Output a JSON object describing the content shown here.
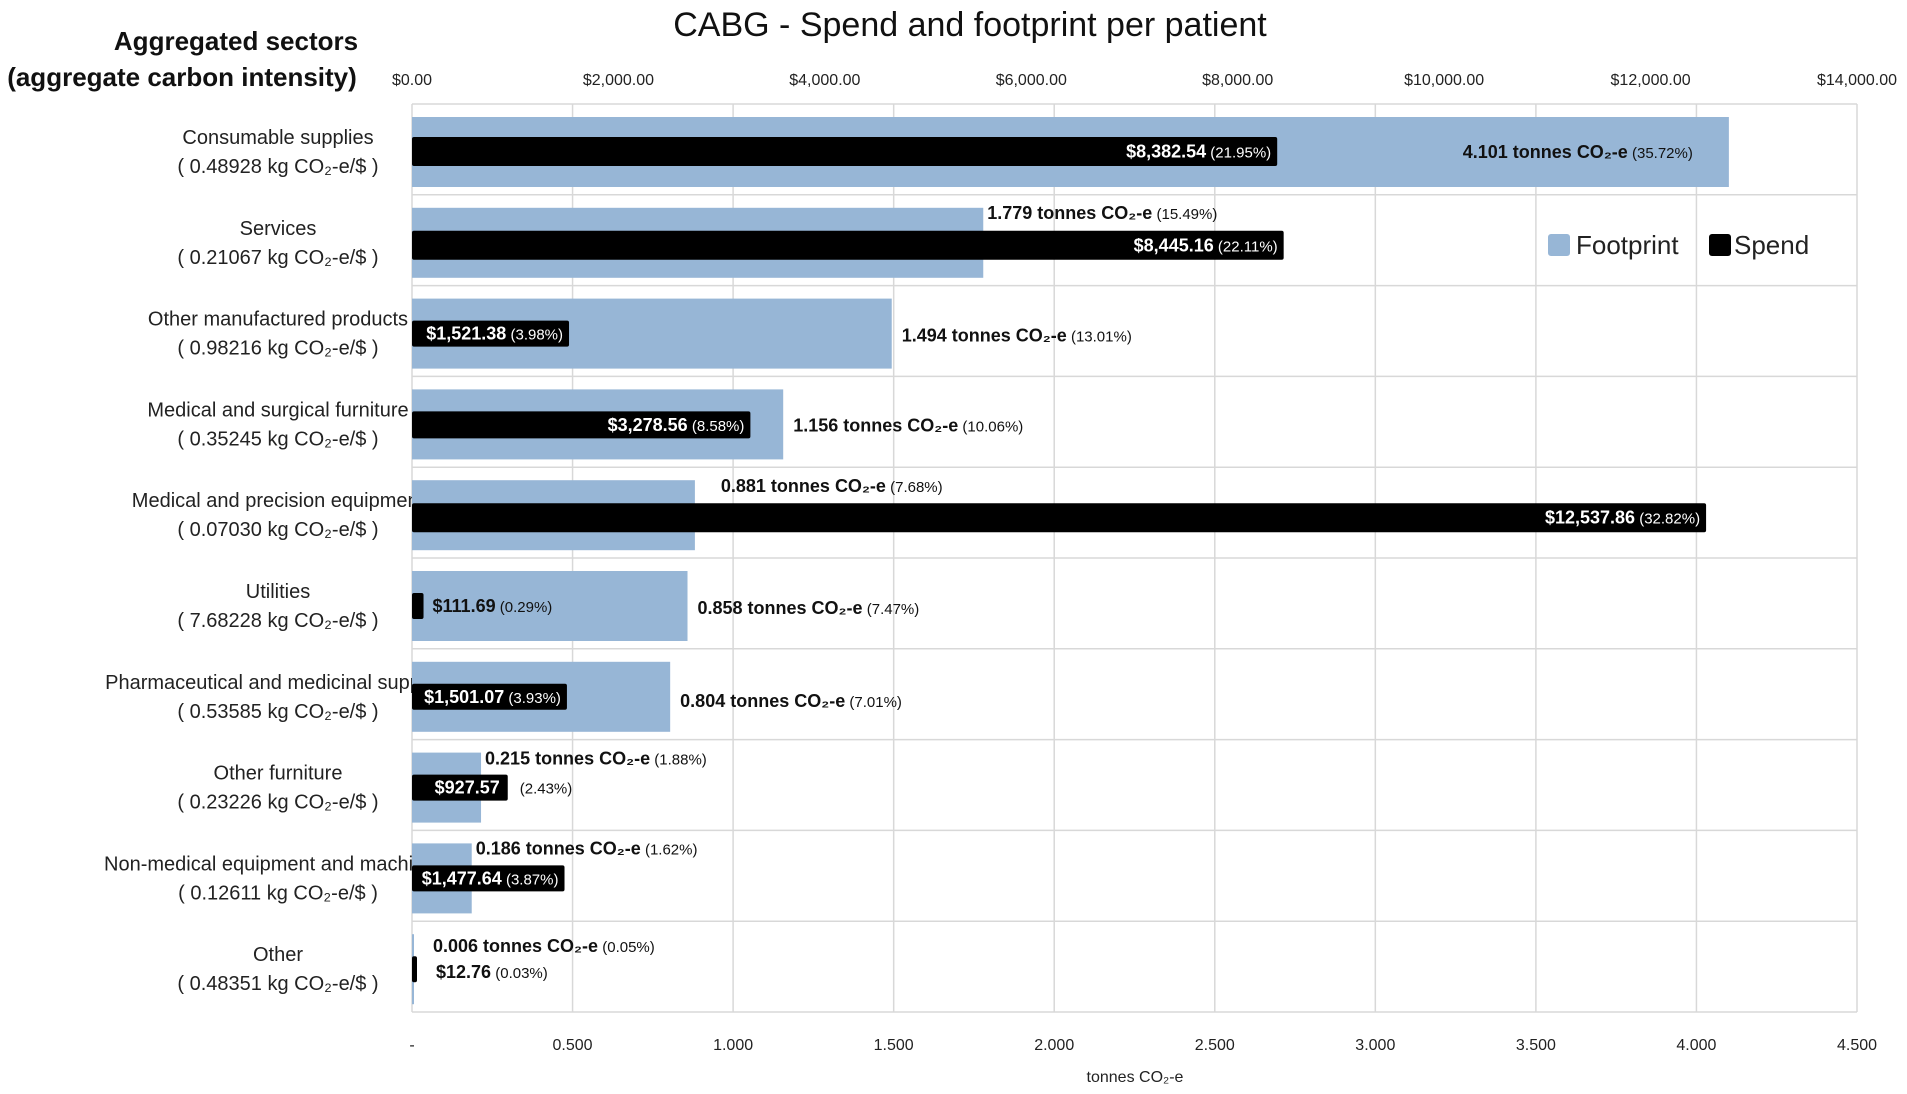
{
  "chart_data": {
    "type": "bar",
    "orientation": "horizontal",
    "title": "CABG - Spend and footprint per patient",
    "y_header": [
      "Aggregated sectors",
      "(aggregate carbon intensity)"
    ],
    "unit_suffix": "CO₂-e/$ )",
    "footprint_unit": "tonnes CO₂-e",
    "x_top_label": "",
    "x_top_ticks": [
      "$0.00",
      "$2,000.00",
      "$4,000.00",
      "$6,000.00",
      "$8,000.00",
      "$10,000.00",
      "$12,000.00",
      "$14,000.00"
    ],
    "x_top_range": [
      0,
      14000
    ],
    "x_bottom_label": "tonnes CO₂-e",
    "x_bottom_ticks": [
      "-",
      "0.500",
      "1.000",
      "1.500",
      "2.000",
      "2.500",
      "3.000",
      "3.500",
      "4.000",
      "4.500"
    ],
    "x_bottom_range": [
      0,
      4.5
    ],
    "grid": true,
    "legend_position": "right",
    "series": [
      {
        "name": "Footprint",
        "color": "#97b6d6"
      },
      {
        "name": "Spend",
        "color": "#000000"
      }
    ],
    "categories": [
      {
        "name": "Consumable supplies",
        "intensity": "( 0.48928 kg",
        "footprint": 4.101,
        "footprint_label": "4.101 tonnes CO₂-e",
        "footprint_pct": "(35.72%)",
        "spend": 8382.54,
        "spend_label": "$8,382.54",
        "spend_pct": "(21.95%)"
      },
      {
        "name": "Services",
        "intensity": "( 0.21067 kg",
        "footprint": 1.779,
        "footprint_label": "1.779 tonnes CO₂-e",
        "footprint_pct": "(15.49%)",
        "spend": 8445.16,
        "spend_label": "$8,445.16",
        "spend_pct": "(22.11%)"
      },
      {
        "name": "Other manufactured products",
        "intensity": "( 0.98216 kg",
        "footprint": 1.494,
        "footprint_label": "1.494 tonnes CO₂-e",
        "footprint_pct": "(13.01%)",
        "spend": 1521.38,
        "spend_label": "$1,521.38",
        "spend_pct": "(3.98%)"
      },
      {
        "name": "Medical and surgical furniture",
        "intensity": "( 0.35245 kg",
        "footprint": 1.156,
        "footprint_label": "1.156 tonnes CO₂-e",
        "footprint_pct": "(10.06%)",
        "spend": 3278.56,
        "spend_label": "$3,278.56",
        "spend_pct": "(8.58%)"
      },
      {
        "name": "Medical and precision equipment",
        "intensity": "( 0.07030 kg",
        "footprint": 0.881,
        "footprint_label": "0.881 tonnes CO₂-e",
        "footprint_pct": "(7.68%)",
        "spend": 12537.86,
        "spend_label": "$12,537.86",
        "spend_pct": "(32.82%)"
      },
      {
        "name": "Utilities",
        "intensity": "( 7.68228 kg",
        "footprint": 0.858,
        "footprint_label": "0.858 tonnes CO₂-e",
        "footprint_pct": "(7.47%)",
        "spend": 111.69,
        "spend_label": "$111.69",
        "spend_pct": "(0.29%)"
      },
      {
        "name": "Pharmaceutical and medicinal supplies",
        "intensity": "( 0.53585 kg",
        "footprint": 0.804,
        "footprint_label": "0.804 tonnes CO₂-e",
        "footprint_pct": "(7.01%)",
        "spend": 1501.07,
        "spend_label": "$1,501.07",
        "spend_pct": "(3.93%)"
      },
      {
        "name": "Other furniture",
        "intensity": "( 0.23226 kg",
        "footprint": 0.215,
        "footprint_label": "0.215 tonnes CO₂-e",
        "footprint_pct": "(1.88%)",
        "spend": 927.57,
        "spend_label": "$927.57",
        "spend_pct": "(2.43%)"
      },
      {
        "name": "Non-medical equipment and machinery",
        "intensity": "( 0.12611 kg",
        "footprint": 0.186,
        "footprint_label": "0.186 tonnes CO₂-e",
        "footprint_pct": "(1.62%)",
        "spend": 1477.64,
        "spend_label": "$1,477.64",
        "spend_pct": "(3.87%)"
      },
      {
        "name": "Other",
        "intensity": "( 0.48351 kg",
        "footprint": 0.006,
        "footprint_label": "0.006 tonnes CO₂-e",
        "footprint_pct": "(0.05%)",
        "spend": 12.76,
        "spend_label": "$12.76",
        "spend_pct": "(0.03%)"
      }
    ]
  }
}
